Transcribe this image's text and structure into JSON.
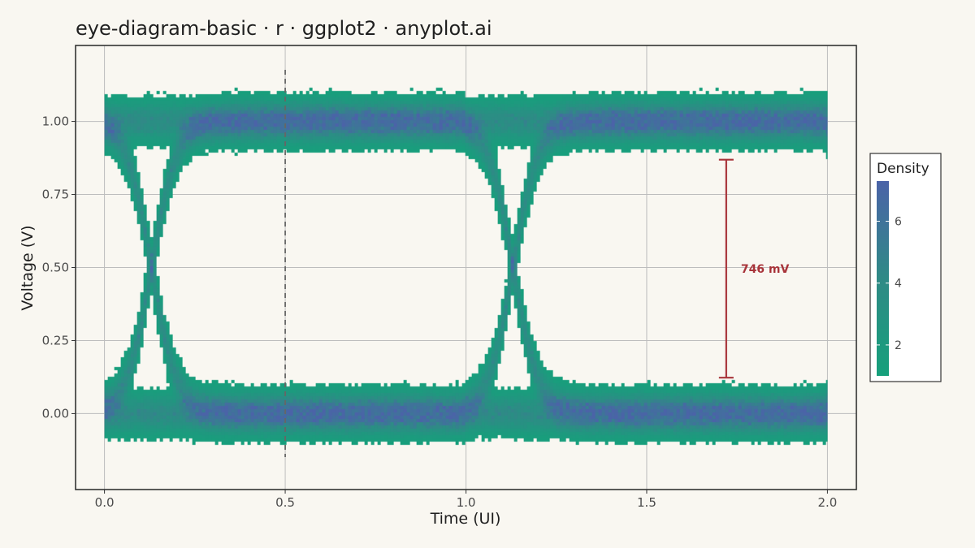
{
  "chart_data": {
    "type": "heatmap",
    "title": "eye-diagram-basic · r · ggplot2 · anyplot.ai",
    "xlabel": "Time (UI)",
    "ylabel": "Voltage (V)",
    "xlim": [
      -0.08,
      2.08
    ],
    "ylim": [
      -0.26,
      1.26
    ],
    "x_ticks": [
      0.0,
      0.5,
      1.0,
      1.5,
      2.0
    ],
    "x_tick_labels": [
      "0.0",
      "0.5",
      "1.0",
      "1.5",
      "2.0"
    ],
    "y_ticks": [
      0.0,
      0.25,
      0.5,
      0.75,
      1.0
    ],
    "y_tick_labels": [
      "0.00",
      "0.25",
      "0.50",
      "0.75",
      "1.00"
    ],
    "grid": true,
    "signal": {
      "low_level": 0.0,
      "high_level": 1.0,
      "unit_intervals": 2,
      "transition_times": [
        0.0,
        1.0
      ],
      "noise_sigma": 0.04
    },
    "sample_marker": {
      "x": 0.5,
      "style": "dashed"
    },
    "eye_opening": {
      "x": 1.72,
      "y_low": 0.123,
      "y_high": 0.869,
      "label": "746 mV"
    },
    "legend": {
      "title": "Density",
      "position": "right",
      "ticks": [
        2,
        4,
        6
      ],
      "tick_labels": [
        "2",
        "4",
        "6"
      ],
      "range": [
        1.0,
        7.3
      ],
      "color_low": "#16a07b",
      "color_high": "#4b63a8"
    },
    "colors": {
      "background": "#f9f7f1",
      "annotation": "#a8343a",
      "sample_line": "#666666"
    }
  }
}
